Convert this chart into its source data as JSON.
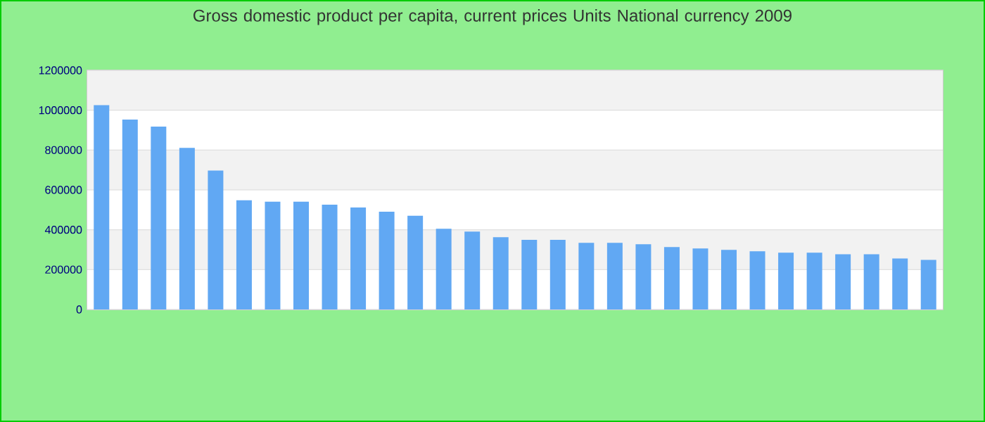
{
  "chart_data": {
    "type": "bar",
    "title": "Gross domestic product per capita, current prices Units National currency 2009",
    "categories": [
      null,
      null,
      null,
      null,
      null,
      null,
      null,
      null,
      null,
      null,
      null,
      null,
      null,
      null,
      null,
      null,
      null,
      null,
      null,
      null,
      null,
      null,
      null,
      null,
      null,
      null,
      null,
      null,
      null,
      null
    ],
    "values": [
      1025000,
      953000,
      918000,
      811000,
      697000,
      548000,
      541000,
      541000,
      526000,
      512000,
      491000,
      470000,
      405000,
      391000,
      363000,
      349000,
      349000,
      334000,
      334000,
      327000,
      313000,
      306000,
      299000,
      292000,
      285000,
      285000,
      277000,
      277000,
      256000,
      249000
    ],
    "color": "#61a8f3",
    "ylim": [
      0,
      1200000
    ],
    "yticks": [
      0,
      200000,
      400000,
      600000,
      800000,
      1000000,
      1200000
    ],
    "grid": "y"
  }
}
